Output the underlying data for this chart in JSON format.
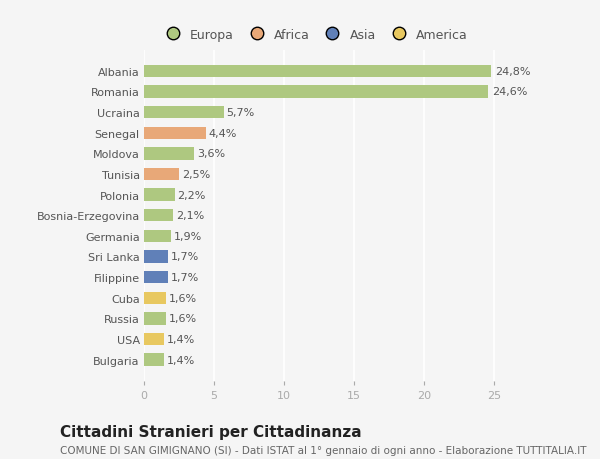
{
  "categories": [
    "Albania",
    "Romania",
    "Ucraina",
    "Senegal",
    "Moldova",
    "Tunisia",
    "Polonia",
    "Bosnia-Erzegovina",
    "Germania",
    "Sri Lanka",
    "Filippine",
    "Cuba",
    "Russia",
    "USA",
    "Bulgaria"
  ],
  "values": [
    24.8,
    24.6,
    5.7,
    4.4,
    3.6,
    2.5,
    2.2,
    2.1,
    1.9,
    1.7,
    1.7,
    1.6,
    1.6,
    1.4,
    1.4
  ],
  "colors": [
    "#aec880",
    "#aec880",
    "#aec880",
    "#e8a878",
    "#aec880",
    "#e8a878",
    "#aec880",
    "#aec880",
    "#aec880",
    "#6080b8",
    "#6080b8",
    "#e8c860",
    "#aec880",
    "#e8c860",
    "#aec880"
  ],
  "labels": [
    "24,8%",
    "24,6%",
    "5,7%",
    "4,4%",
    "3,6%",
    "2,5%",
    "2,2%",
    "2,1%",
    "1,9%",
    "1,7%",
    "1,7%",
    "1,6%",
    "1,6%",
    "1,4%",
    "1,4%"
  ],
  "legend_labels": [
    "Europa",
    "Africa",
    "Asia",
    "America"
  ],
  "legend_colors": [
    "#aec880",
    "#e8a878",
    "#6080b8",
    "#e8c860"
  ],
  "title": "Cittadini Stranieri per Cittadinanza",
  "subtitle": "COMUNE DI SAN GIMIGNANO (SI) - Dati ISTAT al 1° gennaio di ogni anno - Elaborazione TUTTITALIA.IT",
  "xlim": [
    0,
    27
  ],
  "xlabel_ticks": [
    0,
    5,
    10,
    15,
    20,
    25
  ],
  "background_color": "#f5f5f5",
  "bar_height": 0.6,
  "title_fontsize": 11,
  "subtitle_fontsize": 7.5,
  "label_fontsize": 8,
  "tick_fontsize": 8,
  "legend_fontsize": 9
}
